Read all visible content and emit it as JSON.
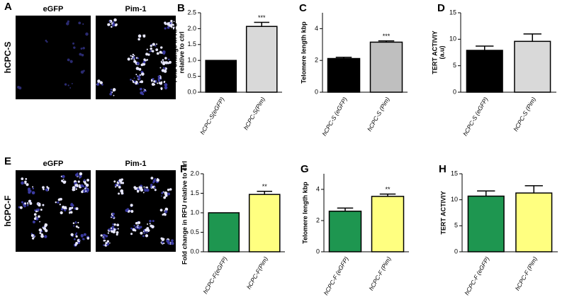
{
  "image_panels": [
    {
      "letter": "A",
      "row_label": "hCPC-S",
      "image_titles": [
        "eGFP",
        "Pim-1"
      ]
    },
    {
      "letter": "E",
      "row_label": "hCPC-F",
      "image_titles": [
        "eGFP",
        "Pim-1"
      ]
    }
  ],
  "chart_data": [
    {
      "type": "bar",
      "letter": "B",
      "ylabel": [
        "Fold change in RFU",
        "relative to ctrl"
      ],
      "categories": [
        "hCPC-S(eGFP)",
        "hCPC-S(Pim)"
      ],
      "values": [
        1.0,
        2.07
      ],
      "errors": [
        null,
        0.13
      ],
      "value_annotations": [
        null,
        "***"
      ],
      "colors": [
        "#000000",
        "#d9d9d9"
      ],
      "ylim": [
        0,
        2.5
      ],
      "yticks": [
        {
          "value": 0,
          "label": "0.0"
        },
        0.5,
        {
          "value": 1,
          "label": "1.0"
        },
        1.5,
        {
          "value": 2,
          "label": "2.0"
        },
        2.5
      ]
    },
    {
      "type": "bar",
      "letter": "C",
      "ylabel": [
        "Telomere length kbp"
      ],
      "categories": [
        "hCPC-S (eGFP)",
        "hCPC-S (Pim)"
      ],
      "values": [
        2.12,
        3.15
      ],
      "errors": [
        0.08,
        0.08
      ],
      "value_annotations": [
        null,
        "***"
      ],
      "colors": [
        "#000000",
        "#bfbfbf"
      ],
      "ylim": [
        0,
        5
      ],
      "yticks": [
        0,
        2,
        4
      ]
    },
    {
      "type": "bar",
      "letter": "D",
      "ylabel": [
        "TERT ACTIVIY",
        "(a.u)"
      ],
      "categories": [
        "hCPC-S (eGFP)",
        "hCPC-S (Pim)"
      ],
      "values": [
        7.9,
        9.6
      ],
      "errors": [
        0.8,
        1.4
      ],
      "value_annotations": [
        null,
        null
      ],
      "colors": [
        "#000000",
        "#d9d9d9"
      ],
      "ylim": [
        0,
        15
      ],
      "yticks": [
        0,
        5,
        10,
        15
      ]
    },
    {
      "type": "bar",
      "letter": "F",
      "ylabel": [
        "Fold change in RFU relative to ctrl"
      ],
      "categories": [
        "hCPC-F(eGFP)",
        "hCPC-F(Pim)"
      ],
      "values": [
        1.0,
        1.47
      ],
      "errors": [
        null,
        0.08
      ],
      "value_annotations": [
        null,
        "**"
      ],
      "colors": [
        "#1e9650",
        "#ffff80"
      ],
      "ylim": [
        0,
        2
      ],
      "yticks": [
        {
          "value": 0,
          "label": "0.0"
        },
        0.5,
        {
          "value": 1,
          "label": "1.0"
        },
        1.5,
        {
          "value": 2,
          "label": "2.0"
        }
      ]
    },
    {
      "type": "bar",
      "letter": "G",
      "ylabel": [
        "Telomere length kbp"
      ],
      "categories": [
        "hCPC-F (eGFP)",
        "hCPC-F (Pim)"
      ],
      "values": [
        2.6,
        3.55
      ],
      "errors": [
        0.2,
        0.15
      ],
      "value_annotations": [
        null,
        "**"
      ],
      "colors": [
        "#1e9650",
        "#ffff80"
      ],
      "ylim": [
        0,
        5
      ],
      "yticks": [
        0,
        2,
        4
      ]
    },
    {
      "type": "bar",
      "letter": "H",
      "ylabel": [
        "TERT ACTIVIY"
      ],
      "categories": [
        "hCPC-F (eGFP)",
        "hCPC-F (Pim)"
      ],
      "values": [
        10.7,
        11.3
      ],
      "errors": [
        1.0,
        1.4
      ],
      "value_annotations": [
        null,
        null
      ],
      "colors": [
        "#1e9650",
        "#ffff80"
      ],
      "ylim": [
        0,
        15
      ],
      "yticks": [
        0,
        5,
        10,
        15
      ]
    }
  ]
}
